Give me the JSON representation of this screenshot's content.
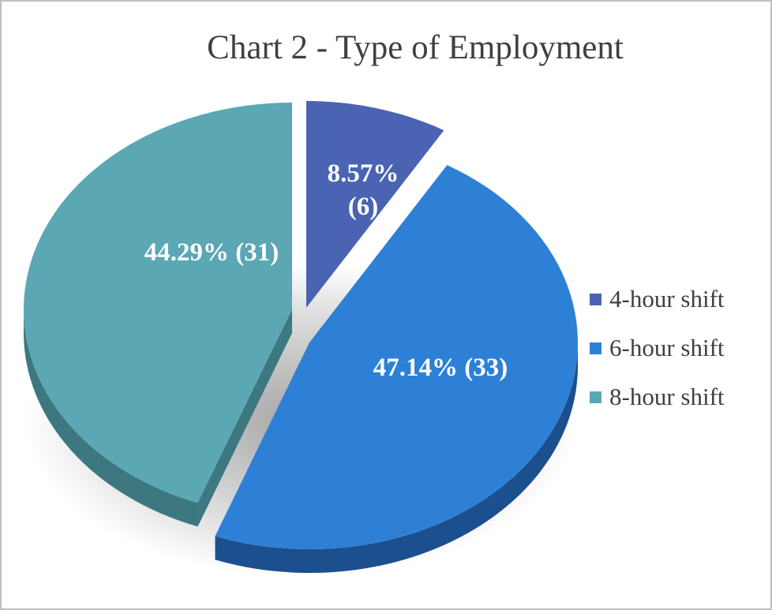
{
  "chart_data": {
    "type": "pie",
    "title": "Chart 2 - Type of Employment",
    "categories": [
      "4-hour shift",
      "6-hour shift",
      "8-hour shift"
    ],
    "values": [
      6,
      33,
      31
    ],
    "percentages": [
      8.57,
      47.14,
      44.29
    ],
    "data_labels": [
      [
        "8.57%",
        "(6)"
      ],
      [
        "47.14% (33)"
      ],
      [
        "44.29% (31)"
      ]
    ],
    "colors": [
      "#4a63b3",
      "#2e80d6",
      "#5ba7b4"
    ],
    "side_colors": [
      "#2f4585",
      "#1b4f8e",
      "#3d7880"
    ],
    "legend_position": "right",
    "exploded": true,
    "three_d": true
  }
}
